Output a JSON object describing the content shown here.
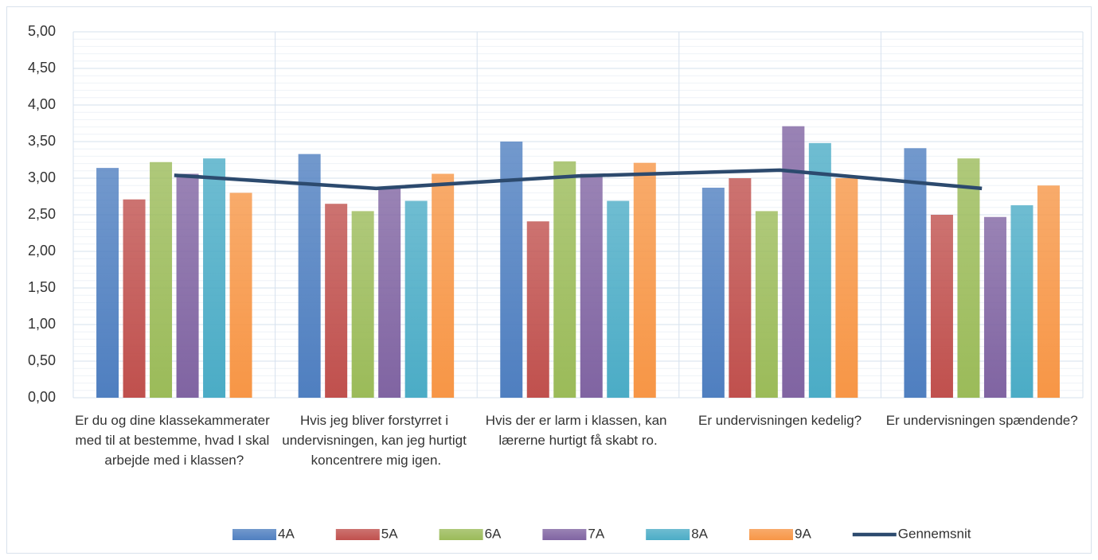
{
  "chart_data": {
    "type": "bar",
    "categories": [
      "Er du og dine klassekammerater med til at bestemme, hvad I skal arbejde med i klassen?",
      "Hvis jeg bliver forstyrret i undervisningen, kan jeg hurtigt koncentrere mig igen.",
      "Hvis der er larm i klassen, kan lærerne hurtigt få skabt ro.",
      "Er undervisningen kedelig?",
      "Er undervisningen spændende?"
    ],
    "series": [
      {
        "name": "4A",
        "color": "#4f7fc0",
        "values": [
          3.14,
          3.33,
          3.5,
          2.87,
          3.41
        ]
      },
      {
        "name": "5A",
        "color": "#c0504d",
        "values": [
          2.71,
          2.65,
          2.41,
          3.0,
          2.5
        ]
      },
      {
        "name": "6A",
        "color": "#9bbb59",
        "values": [
          3.22,
          2.55,
          3.23,
          2.55,
          3.27
        ]
      },
      {
        "name": "7A",
        "color": "#8064a2",
        "values": [
          3.06,
          2.87,
          3.06,
          3.71,
          2.47
        ]
      },
      {
        "name": "8A",
        "color": "#4bacc6",
        "values": [
          3.27,
          2.69,
          2.69,
          3.48,
          2.63
        ]
      },
      {
        "name": "9A",
        "color": "#f79646",
        "values": [
          2.8,
          3.06,
          3.21,
          3.0,
          2.9
        ]
      },
      {
        "name": "Gennemsnit",
        "type": "line",
        "color": "#2c4a6e",
        "values": [
          3.04,
          2.86,
          3.03,
          3.11,
          2.86
        ]
      }
    ],
    "ylim": [
      0,
      5
    ],
    "yticks": [
      {
        "value": 0,
        "label": "0,00"
      },
      {
        "value": 0.5,
        "label": "0,50"
      },
      {
        "value": 1,
        "label": "1,00"
      },
      {
        "value": 1.5,
        "label": "1,50"
      },
      {
        "value": 2,
        "label": "2,00"
      },
      {
        "value": 2.5,
        "label": "2,50"
      },
      {
        "value": 3,
        "label": "3,00"
      },
      {
        "value": 3.5,
        "label": "3,50"
      },
      {
        "value": 4,
        "label": "4,00"
      },
      {
        "value": 4.5,
        "label": "4,50"
      },
      {
        "value": 5,
        "label": "5,00"
      }
    ],
    "grid": true,
    "legend": "bottom"
  }
}
